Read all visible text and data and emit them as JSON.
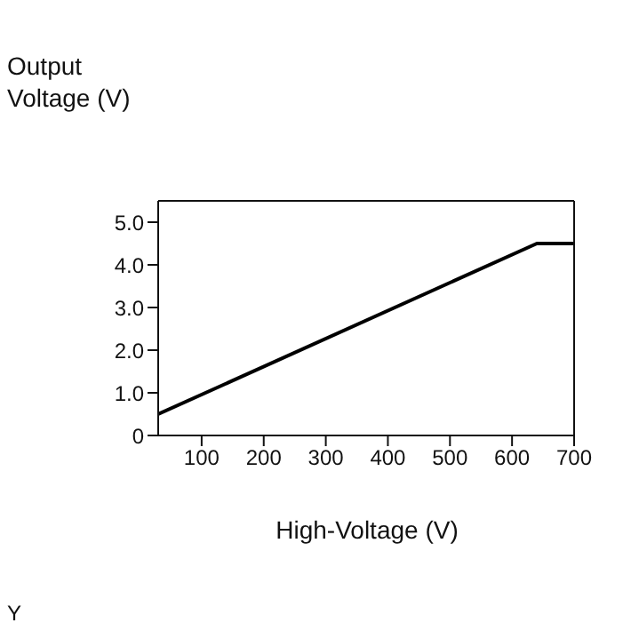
{
  "chart_data": {
    "type": "line",
    "ylabel": "Output\nVoltage (V)",
    "xlabel": "High-Voltage (V)",
    "annotations": [
      "Y"
    ],
    "series": [
      {
        "color": "#000000",
        "x": [
          30,
          640,
          700
        ],
        "values": [
          0.5,
          4.5,
          4.5
        ]
      }
    ],
    "xlim": [
      30,
      700
    ],
    "xticks": [
      100,
      200,
      300,
      400,
      500,
      600,
      700
    ],
    "ylim": [
      0,
      5.5
    ],
    "yticks": [
      0,
      {
        "value": 1,
        "label": "1.0"
      },
      {
        "value": 2,
        "label": "2.0"
      },
      {
        "value": 3,
        "label": "3.0"
      },
      {
        "value": 4,
        "label": "4.0"
      },
      {
        "value": 5,
        "label": "5.0"
      }
    ],
    "grid": false,
    "legend": false,
    "marker": "none",
    "line_style": "solid"
  }
}
